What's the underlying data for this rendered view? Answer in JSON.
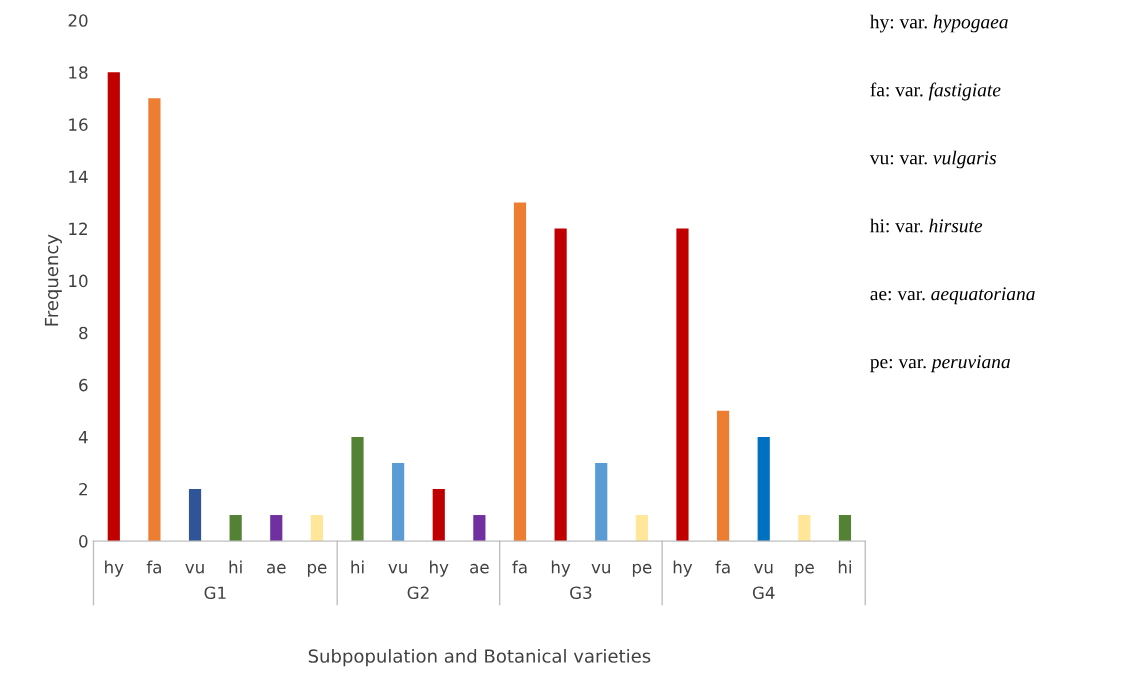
{
  "chart_data": {
    "type": "bar",
    "xlabel": "Subpopulation and Botanical varieties",
    "ylabel": "Frequency",
    "categories": [
      "hy",
      "fa",
      "vu",
      "hi",
      "ae",
      "pe",
      "hi",
      "vu",
      "hy",
      "ae",
      "fa",
      "hy",
      "vu",
      "pe",
      "hy",
      "fa",
      "vu",
      "pe",
      "hi"
    ],
    "values": [
      18,
      17,
      2,
      1,
      1,
      1,
      4,
      3,
      2,
      1,
      13,
      12,
      3,
      1,
      12,
      5,
      4,
      1,
      1
    ],
    "colors": [
      "#c00000",
      "#ed7d31",
      "#2f5597",
      "#548235",
      "#7030a0",
      "#ffe699",
      "#548235",
      "#5b9bd5",
      "#c00000",
      "#7030a0",
      "#ed7d31",
      "#c00000",
      "#5b9bd5",
      "#ffe699",
      "#c00000",
      "#ed7d31",
      "#0070c0",
      "#ffe699",
      "#548235"
    ],
    "ylim": [
      0,
      20
    ],
    "yticks": [
      0,
      2,
      4,
      6,
      8,
      10,
      12,
      14,
      16,
      18,
      20
    ],
    "grid": false,
    "annotations": [
      "G1",
      "G2",
      "G3",
      "G4",
      "hy: var. hypogaea",
      "fa: var. fastigiate",
      "vu: var. vulgaris",
      "hi: var. hirsute",
      "ae: var. aequatoriana",
      "pe: var. peruviana"
    ]
  }
}
